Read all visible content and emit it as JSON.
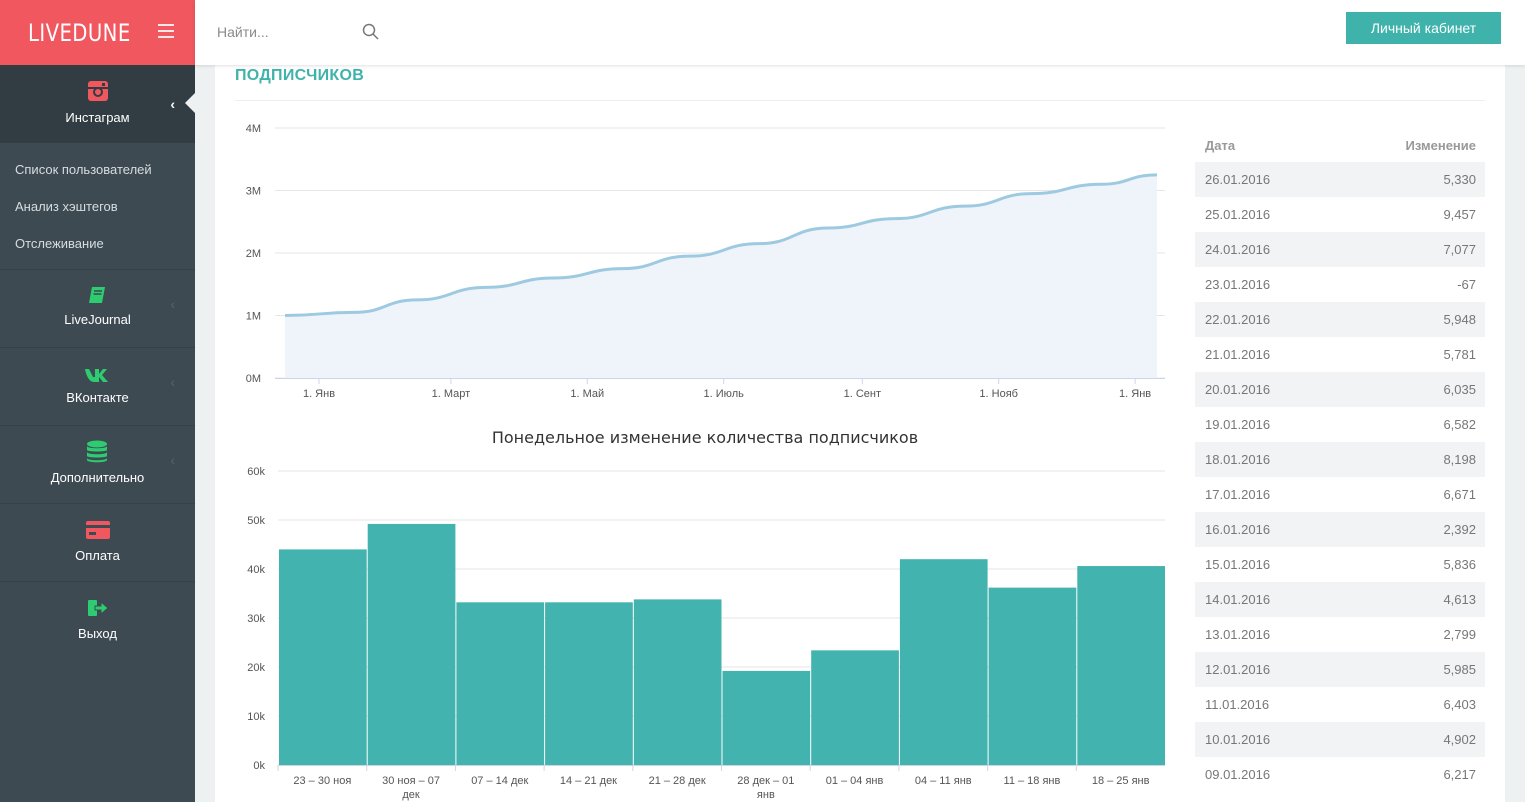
{
  "brand": {
    "logo": "LIVEDUNE",
    "accent": "#f0575e",
    "teal": "#3fb3ab"
  },
  "search": {
    "placeholder": "Найти..."
  },
  "header": {
    "cabinet_button": "Личный кабинет"
  },
  "sidebar": {
    "active": {
      "label": "Инстаграм",
      "icon": "instagram-icon"
    },
    "submenu": [
      "Список пользователей",
      "Анализ хэштегов",
      "Отслеживание"
    ],
    "items": [
      {
        "label": "LiveJournal",
        "icon": "book-icon",
        "color": "#2ecc71"
      },
      {
        "label": "ВКонтакте",
        "icon": "vk-icon",
        "color": "#2ecc71"
      },
      {
        "label": "Дополнительно",
        "icon": "database-icon",
        "color": "#2ecc71"
      },
      {
        "label": "Оплата",
        "icon": "credit-card-icon",
        "color": "#f0575e"
      },
      {
        "label": "Выход",
        "icon": "sign-out-icon",
        "color": "#2ecc71"
      }
    ]
  },
  "main": {
    "section_title": "ПОДПИСЧИКОВ"
  },
  "chart_data": [
    {
      "type": "area",
      "title": "",
      "y_ticks": [
        "0M",
        "1M",
        "2M",
        "3M",
        "4M"
      ],
      "ylim": [
        0,
        4000000
      ],
      "x_ticks": [
        "1. Янв",
        "1. Март",
        "1. Май",
        "1. Июль",
        "1. Сент",
        "1. Нояб",
        "1. Янв"
      ],
      "x_start": "2015-01-01",
      "series": [
        {
          "points": [
            [
              "2015-01-01",
              1000000
            ],
            [
              "2015-02-01",
              1050000
            ],
            [
              "2015-03-01",
              1250000
            ],
            [
              "2015-04-01",
              1450000
            ],
            [
              "2015-05-01",
              1600000
            ],
            [
              "2015-06-01",
              1750000
            ],
            [
              "2015-07-01",
              1950000
            ],
            [
              "2015-08-01",
              2150000
            ],
            [
              "2015-09-01",
              2400000
            ],
            [
              "2015-10-01",
              2550000
            ],
            [
              "2015-11-01",
              2750000
            ],
            [
              "2015-12-01",
              2950000
            ],
            [
              "2016-01-01",
              3100000
            ],
            [
              "2016-01-26",
              3250000
            ]
          ]
        }
      ],
      "color": "#9ecae1"
    },
    {
      "type": "bar",
      "title": "Понедельное изменение количества подписчиков",
      "y_ticks": [
        "0k",
        "10k",
        "20k",
        "30k",
        "40k",
        "50k",
        "60k"
      ],
      "ylim": [
        0,
        60000
      ],
      "categories": [
        "23 – 30 ноя",
        "30 ноя – 07 дек",
        "07 – 14 дек",
        "14 – 21 дек",
        "21 – 28 дек",
        "28 дек – 01 янв",
        "01 – 04 янв",
        "04 – 11 янв",
        "11 – 18 янв",
        "18 – 25 янв"
      ],
      "values": [
        44000,
        49200,
        33200,
        33200,
        33800,
        19200,
        23400,
        42000,
        36200,
        40600
      ],
      "color": "#42b3ae"
    }
  ],
  "table": {
    "headers": [
      "Дата",
      "Изменение"
    ],
    "rows": [
      [
        "26.01.2016",
        "5,330"
      ],
      [
        "25.01.2016",
        "9,457"
      ],
      [
        "24.01.2016",
        "7,077"
      ],
      [
        "23.01.2016",
        "-67"
      ],
      [
        "22.01.2016",
        "5,948"
      ],
      [
        "21.01.2016",
        "5,781"
      ],
      [
        "20.01.2016",
        "6,035"
      ],
      [
        "19.01.2016",
        "6,582"
      ],
      [
        "18.01.2016",
        "8,198"
      ],
      [
        "17.01.2016",
        "6,671"
      ],
      [
        "16.01.2016",
        "2,392"
      ],
      [
        "15.01.2016",
        "5,836"
      ],
      [
        "14.01.2016",
        "4,613"
      ],
      [
        "13.01.2016",
        "2,799"
      ],
      [
        "12.01.2016",
        "5,985"
      ],
      [
        "11.01.2016",
        "6,403"
      ],
      [
        "10.01.2016",
        "4,902"
      ],
      [
        "09.01.2016",
        "6,217"
      ]
    ]
  }
}
